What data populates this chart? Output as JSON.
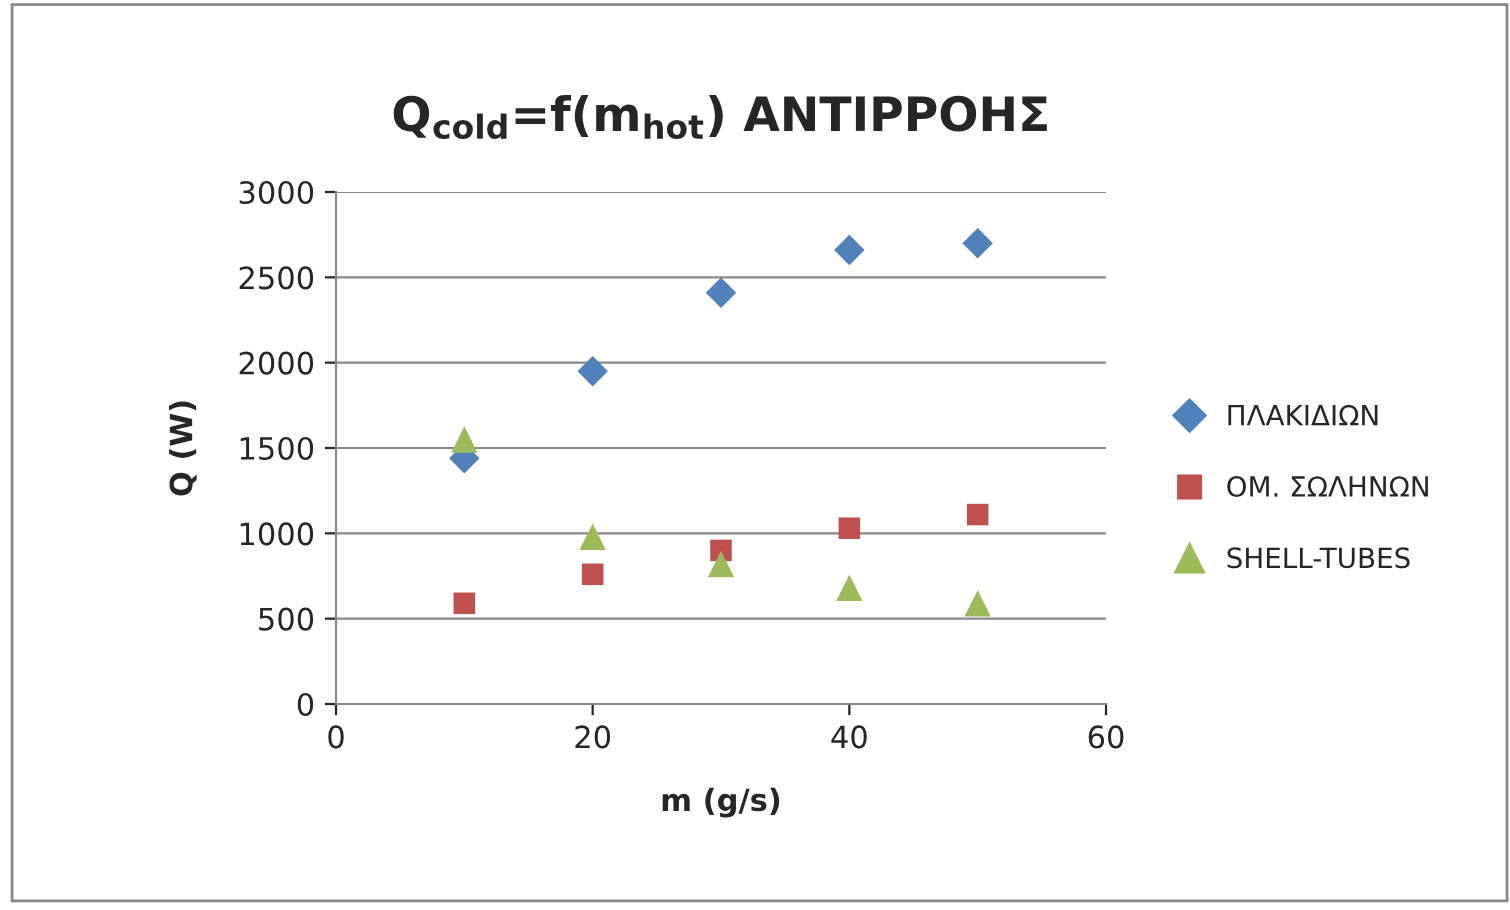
{
  "chart_data": {
    "type": "scatter",
    "title": "Q$_{cold}$=f(m$_{hot}$) ΑΝΤΙΡΡΟΗΣ",
    "xlabel": "m (g/s)",
    "ylabel": "Q (W)",
    "x": [
      10,
      20,
      30,
      40,
      50
    ],
    "series": [
      {
        "name": "ΠΛΑΚΙΔΙΩΝ",
        "color": "#4f81bd",
        "marker": "diamond",
        "values": [
          1440,
          1950,
          2410,
          2660,
          2700
        ]
      },
      {
        "name": "ΟΜ. ΣΩΛΗΝΩΝ",
        "color": "#c0504d",
        "marker": "square",
        "values": [
          590,
          760,
          900,
          1030,
          1110
        ]
      },
      {
        "name": "SHELL-TUBES",
        "color": "#9bbb59",
        "marker": "triangle",
        "values": [
          1550,
          980,
          820,
          680,
          590
        ]
      }
    ],
    "xlim": [
      0,
      60
    ],
    "xticks": [
      0,
      20,
      40,
      60
    ],
    "ylim": [
      0,
      3000
    ],
    "yticks": [
      0,
      500,
      1000,
      1500,
      2000,
      2500,
      3000
    ],
    "grid": "y",
    "legend": "right"
  }
}
